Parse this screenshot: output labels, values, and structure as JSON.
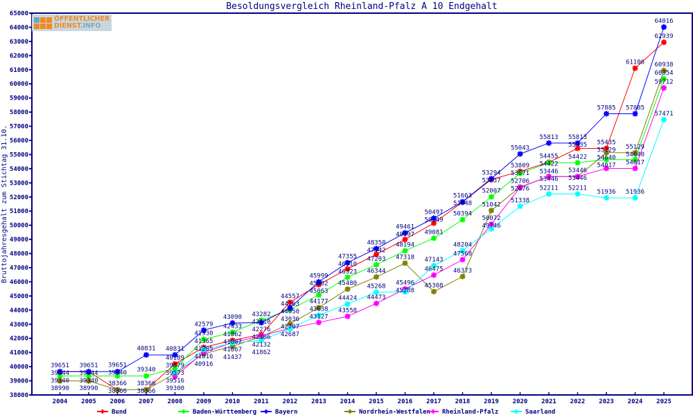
{
  "logo": {
    "line1": "ÖFFENTLICHER",
    "line2": "DIENST",
    "line2_suffix": ".INFO"
  },
  "chart_data": {
    "type": "line",
    "title": "Besoldungsvergleich Rheinland-Pfalz A 10 Endgehalt",
    "xlabel": "",
    "ylabel": "Bruttojahresgehalt zum Stichtag 31.10.",
    "x": [
      2004,
      2005,
      2006,
      2007,
      2008,
      2009,
      2010,
      2011,
      2012,
      2013,
      2014,
      2015,
      2016,
      2017,
      2018,
      2019,
      2020,
      2021,
      2022,
      2023,
      2024,
      2025
    ],
    "ylim": [
      38000,
      65000
    ],
    "ytick_step": 1000,
    "grid": false,
    "legend_position": "bottom",
    "series": [
      {
        "name": "Bund",
        "color": "#ff0000",
        "values": [
          39644,
          39644,
          38366,
          38366,
          40189,
          41365,
          41862,
          42276,
          44557,
          45802,
          46910,
          47942,
          48997,
          50149,
          51648,
          53237,
          53809,
          54455,
          55435,
          55435,
          61106,
          62939
        ]
      },
      {
        "name": "Baden-Württemberg",
        "color": "#00ff00",
        "values": [
          39340,
          39340,
          39340,
          39340,
          39879,
          41930,
          42433,
          43282,
          44050,
          45063,
          46323,
          47203,
          48194,
          49081,
          50394,
          52007,
          53671,
          54422,
          54422,
          54640,
          54640,
          60354
        ]
      },
      {
        "name": "Bayern",
        "color": "#0000ff",
        "values": [
          39651,
          39651,
          39651,
          40831,
          40831,
          42579,
          43090,
          43110,
          44163,
          45999,
          47355,
          48350,
          49461,
          50497,
          51663,
          53294,
          55043,
          55813,
          55813,
          57885,
          57885,
          64016
        ]
      },
      {
        "name": "Nordrhein-Westfalen",
        "color": "#808000",
        "values": [
          38990,
          38990,
          38366,
          38366,
          39516,
          40916,
          41437,
          42132,
          43036,
          44177,
          45480,
          46344,
          47318,
          45308,
          46373,
          51042,
          52706,
          53446,
          53446,
          55129,
          55129,
          60938
        ]
      },
      {
        "name": "Rheinland-Pfalz",
        "color": "#ff00ff",
        "values": [
          null,
          null,
          null,
          null,
          39300,
          41016,
          41687,
          42186,
          42707,
          43127,
          43558,
          44473,
          45496,
          46475,
          47568,
          50072,
          52676,
          53446,
          53446,
          54017,
          54017,
          59712
        ]
      },
      {
        "name": "Saarland",
        "color": "#00ffff",
        "values": [
          null,
          null,
          null,
          null,
          39573,
          41205,
          41667,
          41862,
          42687,
          43638,
          44424,
          45268,
          45288,
          47143,
          48204,
          49746,
          51338,
          52211,
          52211,
          51936,
          51936,
          57471
        ]
      }
    ]
  }
}
